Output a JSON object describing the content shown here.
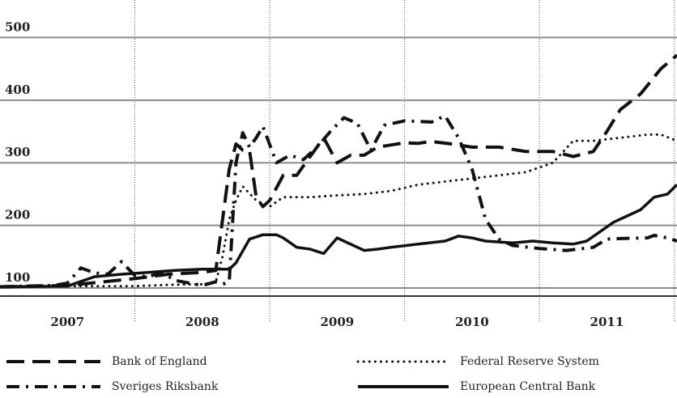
{
  "chart_data": {
    "type": "line",
    "y_ticks": [
      "100",
      "200",
      "300",
      "400",
      "500"
    ],
    "ylim": [
      100,
      560
    ],
    "xlim": [
      2006.5,
      2011.52
    ],
    "year_labels": [
      "2007",
      "2008",
      "2009",
      "2010",
      "2011"
    ],
    "colors": {
      "grid": "#8c8c8c",
      "line": "#111111",
      "background": "#ffffff"
    },
    "series": [
      {
        "name": "Bank of England",
        "style": "long-dash",
        "x": [
          2006.5,
          2007.0,
          2007.5,
          2007.75,
          2008.0,
          2008.1,
          2008.2,
          2008.25,
          2008.3,
          2008.35,
          2008.4,
          2008.45,
          2008.5,
          2008.6,
          2008.7,
          2008.8,
          2008.9,
          2009.0,
          2009.1,
          2009.2,
          2009.3,
          2009.5,
          2009.6,
          2009.7,
          2009.85,
          2010.0,
          2010.2,
          2010.4,
          2010.5,
          2010.6,
          2010.75,
          2010.9,
          2011.0,
          2011.1,
          2011.25,
          2011.4,
          2011.52
        ],
        "y": [
          102,
          104,
          115,
          122,
          125,
          128,
          290,
          330,
          320,
          320,
          245,
          230,
          240,
          280,
          280,
          310,
          340,
          300,
          312,
          312,
          325,
          332,
          331,
          334,
          330,
          325,
          325,
          318,
          318,
          318,
          310,
          318,
          350,
          385,
          410,
          450,
          472
        ]
      },
      {
        "name": "Federal Reserve System",
        "style": "dotted",
        "x": [
          2006.5,
          2007.0,
          2007.5,
          2007.75,
          2008.0,
          2008.1,
          2008.15,
          2008.2,
          2008.25,
          2008.3,
          2008.4,
          2008.5,
          2008.6,
          2008.8,
          2009.0,
          2009.2,
          2009.4,
          2009.6,
          2009.8,
          2010.0,
          2010.2,
          2010.4,
          2010.6,
          2010.75,
          2010.9,
          2011.1,
          2011.3,
          2011.4,
          2011.52
        ],
        "y": [
          102,
          103,
          103,
          105,
          106,
          110,
          150,
          210,
          240,
          262,
          240,
          230,
          245,
          245,
          248,
          250,
          255,
          265,
          270,
          275,
          280,
          285,
          300,
          335,
          335,
          340,
          345,
          345,
          335
        ]
      },
      {
        "name": "Sveriges Riksbank",
        "style": "dash-dot",
        "x": [
          2006.5,
          2006.9,
          2007.0,
          2007.1,
          2007.2,
          2007.3,
          2007.4,
          2007.5,
          2007.6,
          2007.7,
          2007.8,
          2007.9,
          2008.0,
          2008.1,
          2008.15,
          2008.2,
          2008.25,
          2008.3,
          2008.35,
          2008.4,
          2008.45,
          2008.55,
          2008.65,
          2008.75,
          2008.85,
          2008.95,
          2009.05,
          2009.15,
          2009.25,
          2009.35,
          2009.5,
          2009.7,
          2009.8,
          2009.9,
          2010.0,
          2010.1,
          2010.2,
          2010.3,
          2010.5,
          2010.7,
          2010.9,
          2011.0,
          2011.1,
          2011.3,
          2011.35,
          2011.45,
          2011.52
        ],
        "y": [
          102,
          104,
          108,
          132,
          124,
          122,
          142,
          120,
          118,
          125,
          112,
          108,
          104,
          110,
          106,
          110,
          300,
          348,
          325,
          340,
          358,
          300,
          312,
          305,
          325,
          350,
          372,
          363,
          320,
          360,
          367,
          365,
          375,
          340,
          290,
          210,
          178,
          168,
          163,
          160,
          165,
          178,
          179,
          180,
          184,
          180,
          175
        ]
      },
      {
        "name": "European Central Bank",
        "style": "solid",
        "x": [
          2006.5,
          2007.0,
          2007.2,
          2007.4,
          2007.6,
          2007.8,
          2008.0,
          2008.2,
          2008.25,
          2008.35,
          2008.45,
          2008.55,
          2008.6,
          2008.7,
          2008.8,
          2008.9,
          2009.0,
          2009.1,
          2009.2,
          2009.3,
          2009.4,
          2009.6,
          2009.8,
          2009.9,
          2010.0,
          2010.1,
          2010.3,
          2010.45,
          2010.6,
          2010.75,
          2010.85,
          2010.95,
          2011.05,
          2011.15,
          2011.25,
          2011.35,
          2011.45,
          2011.52
        ],
        "y": [
          102,
          103,
          118,
          122,
          125,
          128,
          130,
          130,
          140,
          178,
          185,
          185,
          180,
          165,
          162,
          155,
          180,
          170,
          160,
          162,
          165,
          170,
          175,
          183,
          180,
          175,
          172,
          175,
          172,
          170,
          175,
          190,
          205,
          215,
          225,
          245,
          250,
          265
        ]
      }
    ]
  },
  "legend": [
    {
      "label": "Bank of England",
      "style": "long-dash"
    },
    {
      "label": "Federal Reserve System",
      "style": "dotted"
    },
    {
      "label": "Sveriges Riksbank",
      "style": "dash-dot"
    },
    {
      "label": "European Central Bank",
      "style": "solid"
    }
  ]
}
